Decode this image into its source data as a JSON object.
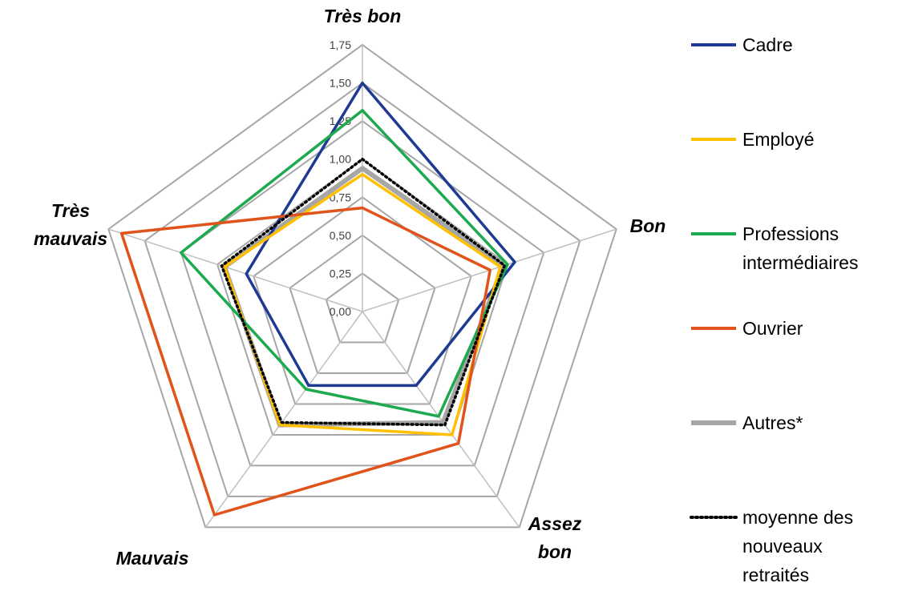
{
  "chart_data": {
    "type": "radar",
    "axes": [
      "Très bon",
      "Bon",
      "Assez bon",
      "Mauvais",
      "Très mauvais"
    ],
    "axis_label_lines": [
      [
        "Très bon"
      ],
      [
        "Bon"
      ],
      [
        "Assez",
        "bon"
      ],
      [
        "Mauvais"
      ],
      [
        "Très",
        "mauvais"
      ]
    ],
    "rlim": [
      0,
      1.75
    ],
    "ticks": [
      0,
      0.25,
      0.5,
      0.75,
      1.0,
      1.25,
      1.5,
      1.75
    ],
    "tick_labels": [
      "0,00",
      "0,25",
      "0,50",
      "0,75",
      "1,00",
      "1,25",
      "1,50",
      "1,75"
    ],
    "grid": true,
    "legend_position": "right",
    "series": [
      {
        "name": "Cadre",
        "label_lines": [
          "Cadre"
        ],
        "color": "#1F3A93",
        "style": "solid",
        "values": [
          1.5,
          1.05,
          0.6,
          0.6,
          0.8
        ]
      },
      {
        "name": "Employé",
        "label_lines": [
          "Employé"
        ],
        "color": "#FFC000",
        "style": "solid",
        "values": [
          0.9,
          0.95,
          1.0,
          0.92,
          0.95
        ]
      },
      {
        "name": "Professions intermédiaires",
        "label_lines": [
          "Professions",
          "intermédiaires"
        ],
        "color": "#1DAA4E",
        "style": "solid",
        "values": [
          1.32,
          1.0,
          0.85,
          0.63,
          1.25
        ]
      },
      {
        "name": "Ouvrier",
        "label_lines": [
          "Ouvrier"
        ],
        "color": "#E0531B",
        "style": "solid",
        "values": [
          0.68,
          0.88,
          1.07,
          1.65,
          1.66
        ]
      },
      {
        "name": "Autres*",
        "label_lines": [
          "Autres*"
        ],
        "color": "#A6A6A6",
        "style": "thick",
        "values": [
          0.94,
          0.97,
          0.9,
          0.92,
          0.95
        ]
      },
      {
        "name": "moyenne des nouveaux retraités",
        "label_lines": [
          "moyenne des",
          "nouveaux",
          "retraités"
        ],
        "color": "#000000",
        "style": "dotted",
        "values": [
          1.0,
          0.98,
          0.92,
          0.9,
          0.97
        ]
      }
    ]
  }
}
